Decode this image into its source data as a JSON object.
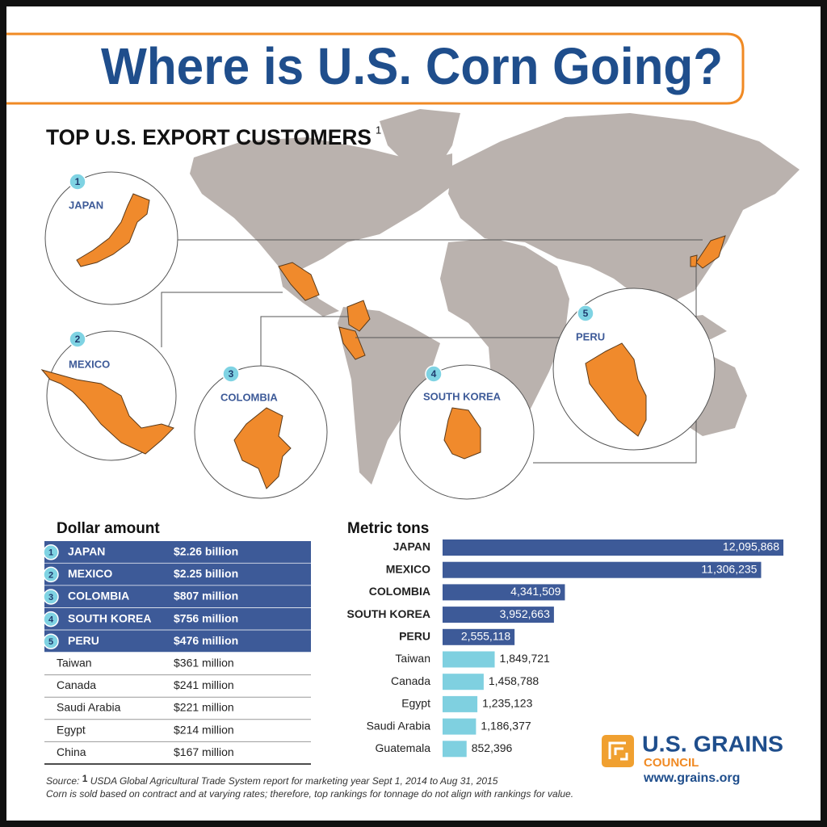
{
  "header": {
    "title": "Where is U.S. Corn Going?"
  },
  "subtitle": {
    "text": "TOP U.S. EXPORT CUSTOMERS",
    "note_mark": "1"
  },
  "map": {
    "countries": [
      {
        "rank": 1,
        "label": "JAPAN"
      },
      {
        "rank": 2,
        "label": "MEXICO"
      },
      {
        "rank": 3,
        "label": "COLOMBIA"
      },
      {
        "rank": 4,
        "label": "SOUTH KOREA"
      },
      {
        "rank": 5,
        "label": "PERU"
      }
    ]
  },
  "dollar_table": {
    "title": "Dollar amount",
    "rows": [
      {
        "rank": 1,
        "country": "JAPAN",
        "amount": "$2.26 billion"
      },
      {
        "rank": 2,
        "country": "MEXICO",
        "amount": "$2.25 billion"
      },
      {
        "rank": 3,
        "country": "COLOMBIA",
        "amount": "$807 million"
      },
      {
        "rank": 4,
        "country": "SOUTH KOREA",
        "amount": "$756 million"
      },
      {
        "rank": 5,
        "country": "PERU",
        "amount": "$476 million"
      },
      {
        "country": "Taiwan",
        "amount": "$361 million"
      },
      {
        "country": "Canada",
        "amount": "$241 million"
      },
      {
        "country": "Saudi Arabia",
        "amount": "$221 million"
      },
      {
        "country": "Egypt",
        "amount": "$214 million"
      },
      {
        "country": "China",
        "amount": "$167 million"
      }
    ]
  },
  "chart_data": {
    "type": "bar",
    "title": "Metric tons",
    "categories": [
      "JAPAN",
      "MEXICO",
      "COLOMBIA",
      "SOUTH KOREA",
      "PERU",
      "Taiwan",
      "Canada",
      "Egypt",
      "Saudi Arabia",
      "Guatemala"
    ],
    "values": [
      12095868,
      11306235,
      4341509,
      3952663,
      2555118,
      1849721,
      1458788,
      1235123,
      1186377,
      852396
    ],
    "value_labels": [
      "12,095,868",
      "11,306,235",
      "4,341,509",
      "3,952,663",
      "2,555,118",
      "1,849,721",
      "1,458,788",
      "1,235,123",
      "1,186,377",
      "852,396"
    ],
    "colors": [
      "#3d5a98",
      "#3d5a98",
      "#3d5a98",
      "#3d5a98",
      "#3d5a98",
      "#7fd0e0",
      "#7fd0e0",
      "#7fd0e0",
      "#7fd0e0",
      "#7fd0e0"
    ]
  },
  "footer": {
    "source_label": "Source:",
    "source_mark": "1",
    "source_text": "USDA Global Agricultural Trade System report for marketing year Sept 1, 2014 to Aug 31, 2015",
    "note": "Corn is sold based on contract and at varying rates; therefore, top rankings for tonnage do not align with rankings for value."
  },
  "logo": {
    "name": "U.S. GRAINS",
    "sub": "COUNCIL",
    "url": "www.grains.org"
  }
}
